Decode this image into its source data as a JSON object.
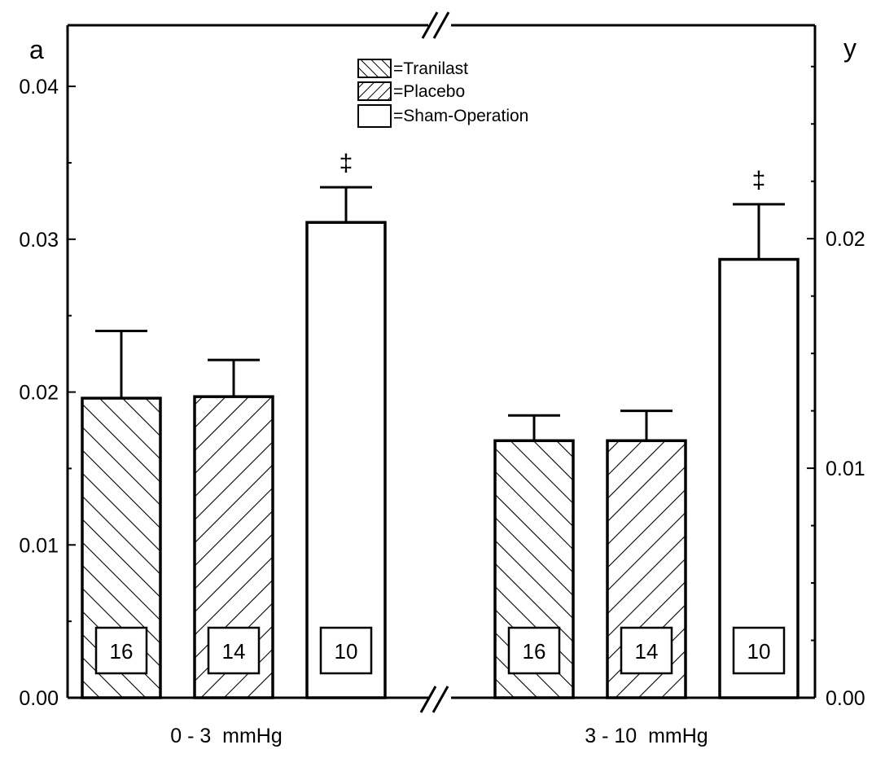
{
  "chart_data": {
    "type": "bar",
    "categories": [
      "0 - 3  mmHg",
      "3 - 10  mmHg"
    ],
    "series": [
      {
        "name": "=Tranilast",
        "pattern": "hatch-back",
        "values": [
          0.0196,
          0.0112
        ],
        "errors": [
          0.0044,
          0.0011
        ],
        "n": [
          "16",
          "16"
        ]
      },
      {
        "name": "=Placebo",
        "pattern": "hatch-forward",
        "values": [
          0.0197,
          0.0112
        ],
        "errors": [
          0.0024,
          0.0013
        ],
        "n": [
          "14",
          "14"
        ]
      },
      {
        "name": "=Sham-Operation",
        "pattern": "open",
        "values": [
          0.0311,
          0.0191
        ],
        "errors": [
          0.0023,
          0.0024
        ],
        "n": [
          "10",
          "10"
        ]
      }
    ],
    "annotations": [
      "‡",
      "‡"
    ],
    "left_axis": {
      "label": "a",
      "range": [
        0,
        0.044
      ],
      "tick_labels": [
        "0.00",
        "0.01",
        "0.02",
        "0.03",
        "0.04"
      ],
      "ticks": [
        0,
        0.01,
        0.02,
        0.03,
        0.04
      ]
    },
    "right_axis": {
      "label": "y",
      "range": [
        0,
        0.0293
      ],
      "tick_labels": [
        "0.00",
        "0.01",
        "0.02"
      ],
      "ticks": [
        0,
        0.01,
        0.02
      ]
    },
    "axis_break": true,
    "grid": false,
    "legend_position": "top-center",
    "colors": {
      "ink": "#000000",
      "fill": "#ffffff"
    }
  }
}
